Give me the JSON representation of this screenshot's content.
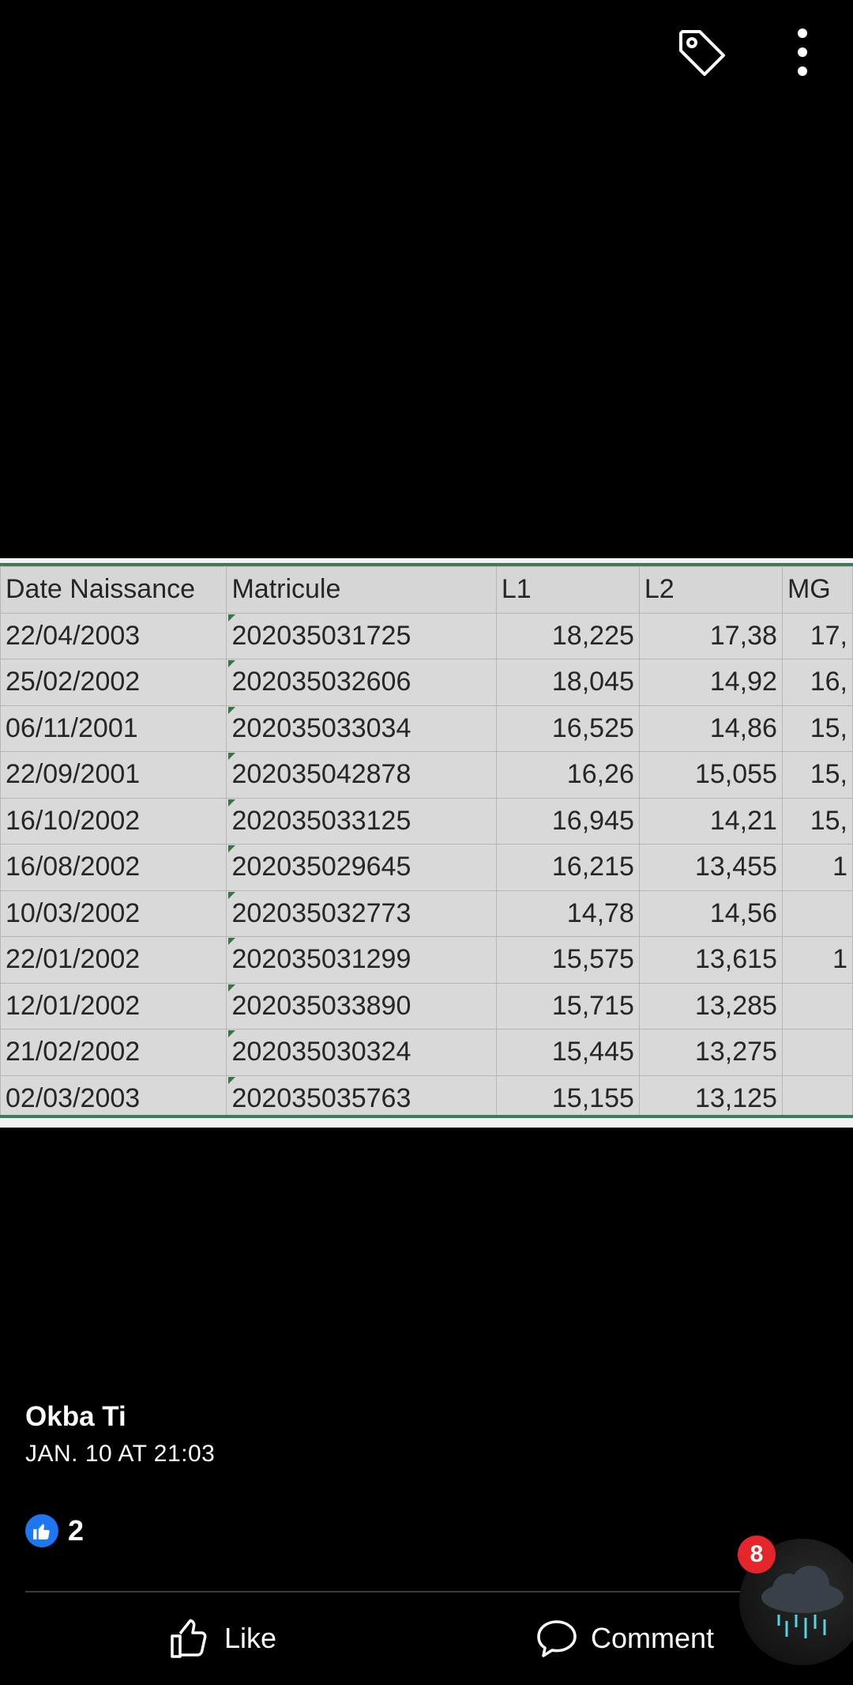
{
  "topbar": {
    "tag_icon": "tag-icon",
    "more_icon": "more-vertical-icon"
  },
  "sheet": {
    "headers": [
      "Date Naissance",
      "Matricule",
      "L1",
      "L2",
      "MG"
    ],
    "rows": [
      [
        "22/04/2003",
        "202035031725",
        "18,225",
        "17,38",
        "17,"
      ],
      [
        "25/02/2002",
        "202035032606",
        "18,045",
        "14,92",
        "16,"
      ],
      [
        "06/11/2001",
        "202035033034",
        "16,525",
        "14,86",
        "15,"
      ],
      [
        "22/09/2001",
        "202035042878",
        "16,26",
        "15,055",
        "15,"
      ],
      [
        "16/10/2002",
        "202035033125",
        "16,945",
        "14,21",
        "15,"
      ],
      [
        "16/08/2002",
        "202035029645",
        "16,215",
        "13,455",
        "1"
      ],
      [
        "10/03/2002",
        "202035032773",
        "14,78",
        "14,56",
        ""
      ],
      [
        "22/01/2002",
        "202035031299",
        "15,575",
        "13,615",
        "1"
      ],
      [
        "12/01/2002",
        "202035033890",
        "15,715",
        "13,285",
        ""
      ],
      [
        "21/02/2002",
        "202035030324",
        "15,445",
        "13,275",
        ""
      ],
      [
        "02/03/2003",
        "202035035763",
        "15,155",
        "13,125",
        ""
      ]
    ]
  },
  "post": {
    "author": "Okba Ti",
    "date": "JAN. 10 AT 21:03",
    "like_count": "2"
  },
  "actions": {
    "like_label": "Like",
    "comment_label": "Comment"
  },
  "chathead": {
    "badge_count": "8"
  },
  "colors": {
    "like_blue": "#1d76f2",
    "badge_red": "#e4262b",
    "sheet_green": "#3e7a55"
  }
}
